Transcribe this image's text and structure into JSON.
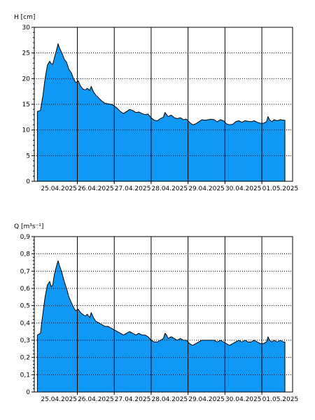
{
  "chart_data": [
    {
      "type": "area",
      "ylabel": "H [cm]",
      "ylim": [
        0,
        30
      ],
      "yticks": [
        "0",
        "5",
        "10",
        "15",
        "20",
        "25",
        "30"
      ],
      "x_categories": [
        "25.04.2025",
        "26.04.2025",
        "27.04.2025",
        "28.04.2025",
        "29.04.2025",
        "30.04.2025",
        "01.05.2025"
      ],
      "x_range": [
        "2025-04-24 20:00",
        "2025-05-01 20:00"
      ],
      "grid": {
        "horizontal": "dotted",
        "vertical": "solid"
      },
      "color": "#0f98f5",
      "series": [
        {
          "points": [
            [
              "2025-04-24 22:00",
              13.6
            ],
            [
              "2025-04-25 00:00",
              13.8
            ],
            [
              "2025-04-25 01:30",
              16.5
            ],
            [
              "2025-04-25 03:00",
              20.0
            ],
            [
              "2025-04-25 04:30",
              22.6
            ],
            [
              "2025-04-25 06:00",
              23.4
            ],
            [
              "2025-04-25 07:00",
              22.9
            ],
            [
              "2025-04-25 08:00",
              22.8
            ],
            [
              "2025-04-25 09:00",
              24.0
            ],
            [
              "2025-04-25 10:30",
              25.6
            ],
            [
              "2025-04-25 11:30",
              26.8
            ],
            [
              "2025-04-25 12:30",
              25.9
            ],
            [
              "2025-04-25 14:00",
              25.0
            ],
            [
              "2025-04-25 15:30",
              23.8
            ],
            [
              "2025-04-25 17:00",
              23.2
            ],
            [
              "2025-04-25 18:30",
              21.8
            ],
            [
              "2025-04-25 20:00",
              21.2
            ],
            [
              "2025-04-25 21:30",
              20.0
            ],
            [
              "2025-04-25 23:00",
              19.2
            ],
            [
              "2025-04-26 00:30",
              19.6
            ],
            [
              "2025-04-26 02:00",
              18.6
            ],
            [
              "2025-04-26 03:30",
              18.0
            ],
            [
              "2025-04-26 05:00",
              17.8
            ],
            [
              "2025-04-26 06:30",
              18.1
            ],
            [
              "2025-04-26 08:00",
              17.7
            ],
            [
              "2025-04-26 09:00",
              18.5
            ],
            [
              "2025-04-26 10:30",
              17.4
            ],
            [
              "2025-04-26 12:00",
              16.8
            ],
            [
              "2025-04-26 14:00",
              16.2
            ],
            [
              "2025-04-26 16:00",
              15.6
            ],
            [
              "2025-04-26 18:00",
              15.2
            ],
            [
              "2025-04-26 20:00",
              15.1
            ],
            [
              "2025-04-26 22:00",
              15.0
            ],
            [
              "2025-04-27 00:00",
              14.7
            ],
            [
              "2025-04-27 02:00",
              14.2
            ],
            [
              "2025-04-27 04:00",
              13.6
            ],
            [
              "2025-04-27 06:00",
              13.2
            ],
            [
              "2025-04-27 08:00",
              13.6
            ],
            [
              "2025-04-27 10:00",
              14.0
            ],
            [
              "2025-04-27 12:00",
              13.8
            ],
            [
              "2025-04-27 14:00",
              13.4
            ],
            [
              "2025-04-27 16:00",
              13.5
            ],
            [
              "2025-04-27 18:00",
              13.2
            ],
            [
              "2025-04-27 20:00",
              13.0
            ],
            [
              "2025-04-27 22:00",
              13.1
            ],
            [
              "2025-04-28 00:00",
              12.4
            ],
            [
              "2025-04-28 02:00",
              11.9
            ],
            [
              "2025-04-28 04:00",
              11.8
            ],
            [
              "2025-04-28 06:00",
              12.2
            ],
            [
              "2025-04-28 08:00",
              12.5
            ],
            [
              "2025-04-28 09:00",
              13.4
            ],
            [
              "2025-04-28 10:00",
              13.0
            ],
            [
              "2025-04-28 11:00",
              12.6
            ],
            [
              "2025-04-28 13:00",
              12.9
            ],
            [
              "2025-04-28 15:00",
              12.4
            ],
            [
              "2025-04-28 17:00",
              12.2
            ],
            [
              "2025-04-28 19:00",
              12.4
            ],
            [
              "2025-04-28 21:00",
              12.0
            ],
            [
              "2025-04-28 23:00",
              12.1
            ],
            [
              "2025-04-29 01:00",
              11.5
            ],
            [
              "2025-04-29 03:00",
              11.0
            ],
            [
              "2025-04-29 05:00",
              11.2
            ],
            [
              "2025-04-29 07:00",
              11.6
            ],
            [
              "2025-04-29 09:00",
              12.0
            ],
            [
              "2025-04-29 11:00",
              11.9
            ],
            [
              "2025-04-29 13:00",
              12.0
            ],
            [
              "2025-04-29 15:00",
              12.1
            ],
            [
              "2025-04-29 17:00",
              12.0
            ],
            [
              "2025-04-29 19:00",
              11.6
            ],
            [
              "2025-04-29 21:00",
              12.0
            ],
            [
              "2025-04-29 23:00",
              11.8
            ],
            [
              "2025-04-30 01:00",
              11.2
            ],
            [
              "2025-04-30 03:00",
              11.0
            ],
            [
              "2025-04-30 05:00",
              11.1
            ],
            [
              "2025-04-30 07:00",
              11.6
            ],
            [
              "2025-04-30 09:00",
              11.8
            ],
            [
              "2025-04-30 11:00",
              11.5
            ],
            [
              "2025-04-30 13:00",
              11.8
            ],
            [
              "2025-04-30 15:00",
              11.7
            ],
            [
              "2025-04-30 17:00",
              11.6
            ],
            [
              "2025-04-30 19:00",
              11.8
            ],
            [
              "2025-04-30 21:00",
              11.5
            ],
            [
              "2025-04-30 23:00",
              11.3
            ],
            [
              "2025-05-01 01:00",
              11.3
            ],
            [
              "2025-05-01 03:00",
              11.6
            ],
            [
              "2025-05-01 04:00",
              12.6
            ],
            [
              "2025-05-01 05:00",
              12.0
            ],
            [
              "2025-05-01 06:30",
              11.6
            ],
            [
              "2025-05-01 08:00",
              12.0
            ],
            [
              "2025-05-01 10:00",
              11.8
            ],
            [
              "2025-05-01 12:00",
              12.0
            ],
            [
              "2025-05-01 14:00",
              11.9
            ],
            [
              "2025-05-01 15:00",
              11.9
            ]
          ]
        }
      ]
    },
    {
      "type": "area",
      "ylabel": "Q [m³s⁻¹]",
      "ylim": [
        0,
        0.9
      ],
      "yticks": [
        "0",
        "0,1",
        "0,2",
        "0,3",
        "0,4",
        "0,5",
        "0,6",
        "0,7",
        "0,8",
        "0,9"
      ],
      "x_categories": [
        "25.04.2025",
        "26.04.2025",
        "27.04.2025",
        "28.04.2025",
        "29.04.2025",
        "30.04.2025",
        "01.05.2025"
      ],
      "x_range": [
        "2025-04-24 20:00",
        "2025-05-01 20:00"
      ],
      "grid": {
        "horizontal": "dotted",
        "vertical": "solid"
      },
      "color": "#0f98f5",
      "series": [
        {
          "points": [
            [
              "2025-04-24 22:00",
              0.33
            ],
            [
              "2025-04-25 00:00",
              0.34
            ],
            [
              "2025-04-25 01:30",
              0.45
            ],
            [
              "2025-04-25 03:00",
              0.55
            ],
            [
              "2025-04-25 04:30",
              0.62
            ],
            [
              "2025-04-25 06:00",
              0.64
            ],
            [
              "2025-04-25 07:00",
              0.61
            ],
            [
              "2025-04-25 08:00",
              0.62
            ],
            [
              "2025-04-25 09:00",
              0.68
            ],
            [
              "2025-04-25 10:30",
              0.73
            ],
            [
              "2025-04-25 11:30",
              0.76
            ],
            [
              "2025-04-25 12:30",
              0.73
            ],
            [
              "2025-04-25 14:00",
              0.69
            ],
            [
              "2025-04-25 15:30",
              0.64
            ],
            [
              "2025-04-25 17:00",
              0.6
            ],
            [
              "2025-04-25 18:30",
              0.55
            ],
            [
              "2025-04-25 20:00",
              0.52
            ],
            [
              "2025-04-25 21:30",
              0.49
            ],
            [
              "2025-04-25 23:00",
              0.47
            ],
            [
              "2025-04-26 00:30",
              0.48
            ],
            [
              "2025-04-26 02:00",
              0.46
            ],
            [
              "2025-04-26 03:30",
              0.45
            ],
            [
              "2025-04-26 05:00",
              0.44
            ],
            [
              "2025-04-26 06:30",
              0.45
            ],
            [
              "2025-04-26 08:00",
              0.43
            ],
            [
              "2025-04-26 09:00",
              0.46
            ],
            [
              "2025-04-26 10:30",
              0.43
            ],
            [
              "2025-04-26 12:00",
              0.41
            ],
            [
              "2025-04-26 14:00",
              0.4
            ],
            [
              "2025-04-26 16:00",
              0.39
            ],
            [
              "2025-04-26 18:00",
              0.38
            ],
            [
              "2025-04-26 20:00",
              0.38
            ],
            [
              "2025-04-26 22:00",
              0.37
            ],
            [
              "2025-04-27 00:00",
              0.36
            ],
            [
              "2025-04-27 02:00",
              0.35
            ],
            [
              "2025-04-27 04:00",
              0.34
            ],
            [
              "2025-04-27 06:00",
              0.33
            ],
            [
              "2025-04-27 08:00",
              0.34
            ],
            [
              "2025-04-27 10:00",
              0.35
            ],
            [
              "2025-04-27 12:00",
              0.34
            ],
            [
              "2025-04-27 14:00",
              0.33
            ],
            [
              "2025-04-27 16:00",
              0.34
            ],
            [
              "2025-04-27 18:00",
              0.33
            ],
            [
              "2025-04-27 20:00",
              0.33
            ],
            [
              "2025-04-27 22:00",
              0.32
            ],
            [
              "2025-04-28 00:00",
              0.3
            ],
            [
              "2025-04-28 02:00",
              0.29
            ],
            [
              "2025-04-28 04:00",
              0.29
            ],
            [
              "2025-04-28 06:00",
              0.3
            ],
            [
              "2025-04-28 08:00",
              0.31
            ],
            [
              "2025-04-28 09:00",
              0.34
            ],
            [
              "2025-04-28 10:00",
              0.33
            ],
            [
              "2025-04-28 11:00",
              0.31
            ],
            [
              "2025-04-28 13:00",
              0.32
            ],
            [
              "2025-04-28 15:00",
              0.31
            ],
            [
              "2025-04-28 17:00",
              0.3
            ],
            [
              "2025-04-28 19:00",
              0.31
            ],
            [
              "2025-04-28 21:00",
              0.3
            ],
            [
              "2025-04-28 23:00",
              0.3
            ],
            [
              "2025-04-29 01:00",
              0.28
            ],
            [
              "2025-04-29 03:00",
              0.27
            ],
            [
              "2025-04-29 05:00",
              0.28
            ],
            [
              "2025-04-29 07:00",
              0.29
            ],
            [
              "2025-04-29 09:00",
              0.3
            ],
            [
              "2025-04-29 11:00",
              0.3
            ],
            [
              "2025-04-29 13:00",
              0.3
            ],
            [
              "2025-04-29 15:00",
              0.3
            ],
            [
              "2025-04-29 17:00",
              0.3
            ],
            [
              "2025-04-29 19:00",
              0.29
            ],
            [
              "2025-04-29 21:00",
              0.3
            ],
            [
              "2025-04-29 23:00",
              0.29
            ],
            [
              "2025-04-30 01:00",
              0.28
            ],
            [
              "2025-04-30 03:00",
              0.27
            ],
            [
              "2025-04-30 05:00",
              0.28
            ],
            [
              "2025-04-30 07:00",
              0.29
            ],
            [
              "2025-04-30 09:00",
              0.3
            ],
            [
              "2025-04-30 11:00",
              0.29
            ],
            [
              "2025-04-30 13:00",
              0.3
            ],
            [
              "2025-04-30 15:00",
              0.29
            ],
            [
              "2025-04-30 17:00",
              0.29
            ],
            [
              "2025-04-30 19:00",
              0.3
            ],
            [
              "2025-04-30 21:00",
              0.29
            ],
            [
              "2025-04-30 23:00",
              0.28
            ],
            [
              "2025-05-01 01:00",
              0.28
            ],
            [
              "2025-05-01 03:00",
              0.29
            ],
            [
              "2025-05-01 04:00",
              0.32
            ],
            [
              "2025-05-01 05:00",
              0.3
            ],
            [
              "2025-05-01 06:30",
              0.29
            ],
            [
              "2025-05-01 08:00",
              0.3
            ],
            [
              "2025-05-01 10:00",
              0.29
            ],
            [
              "2025-05-01 12:00",
              0.3
            ],
            [
              "2025-05-01 14:00",
              0.29
            ],
            [
              "2025-05-01 15:00",
              0.29
            ]
          ]
        }
      ]
    }
  ]
}
